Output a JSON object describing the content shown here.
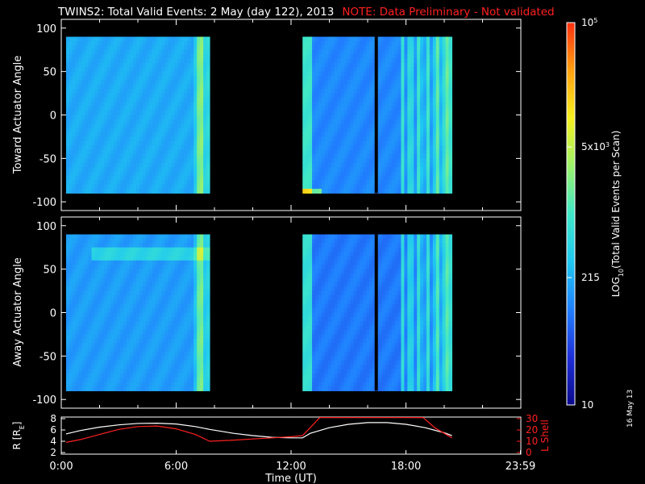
{
  "title": {
    "main": "TWINS2: Total Valid Events:  2 May (day 122), 2013",
    "note": "NOTE: Data Preliminary - Not validated"
  },
  "stamp": "16 May 13",
  "chart_data": [
    {
      "type": "heatmap",
      "panel": "toward",
      "ylabel": "Toward Actuator Angle",
      "ylim": [
        -110,
        110
      ],
      "yticks": [
        "100",
        "50",
        "0",
        "-50",
        "-100"
      ],
      "ytick_values": [
        100,
        50,
        0,
        -50,
        -100
      ],
      "xlim_hours": [
        0,
        24
      ],
      "y_extent": [
        -90,
        90
      ],
      "data_segments_hours": [
        [
          0.25,
          7.75
        ],
        [
          12.6,
          20.4
        ]
      ],
      "gap_line_hours": 16.45,
      "typical_log10": 2.3,
      "grid": false
    },
    {
      "type": "heatmap",
      "panel": "away",
      "ylabel": "Away Actuator Angle",
      "ylim": [
        -110,
        110
      ],
      "yticks": [
        "100",
        "50",
        "0",
        "-50",
        "-100"
      ],
      "ytick_values": [
        100,
        50,
        0,
        -50,
        -100
      ],
      "xlim_hours": [
        0,
        24
      ],
      "y_extent": [
        -90,
        90
      ],
      "data_segments_hours": [
        [
          0.25,
          7.75
        ],
        [
          12.6,
          20.4
        ]
      ],
      "gap_line_hours": 16.45,
      "typical_log10": 2.2,
      "grid": false
    },
    {
      "type": "line",
      "panel": "orbit",
      "ylabel_left": "R [R",
      "ylabel_left_sub": "E",
      "ylabel_left_end": "]",
      "ylabel_right": "L Shell",
      "ylim_left": [
        2,
        8
      ],
      "ylim_right": [
        0,
        30
      ],
      "yticks_left": [
        "8",
        "6",
        "4",
        "2"
      ],
      "ytick_values_left": [
        8,
        6,
        4,
        2
      ],
      "yticks_right": [
        "30",
        "20",
        "10",
        "0"
      ],
      "ytick_values_right": [
        30,
        20,
        10,
        0
      ],
      "xlabel": "Time (UT)",
      "xticks": [
        "0:00",
        "6:00",
        "12:00",
        "18:00",
        "23:59"
      ],
      "xtick_values_hours": [
        0,
        6,
        12,
        18,
        23.98
      ],
      "series": [
        {
          "axis": "left",
          "color": "#ffffff",
          "x": [
            0.25,
            1,
            2,
            3,
            4,
            5,
            6,
            7,
            7.75,
            9,
            10,
            11,
            12,
            12.6,
            13,
            14,
            15,
            16,
            17,
            18,
            19,
            20,
            20.4
          ],
          "y": [
            5.3,
            5.9,
            6.5,
            6.9,
            7.15,
            7.2,
            7.05,
            6.6,
            6.1,
            5.4,
            5.0,
            4.7,
            4.6,
            4.6,
            5.4,
            6.4,
            7.0,
            7.3,
            7.3,
            7.0,
            6.4,
            5.5,
            5.0
          ]
        },
        {
          "axis": "right",
          "color": "#ff2020",
          "x": [
            0.25,
            1,
            2,
            3,
            4,
            5,
            6,
            7,
            7.75,
            9,
            10,
            11,
            12,
            12.6,
            13,
            13.5,
            18.9,
            19.5,
            20,
            20.4
          ],
          "y": [
            9,
            11.5,
            16,
            20.5,
            23,
            23.5,
            21,
            16,
            10,
            11,
            12,
            13,
            14,
            15,
            22,
            31,
            31,
            22,
            17,
            13
          ]
        }
      ],
      "grid": false
    }
  ],
  "colorbar": {
    "label": "LOG",
    "label_sub": "10",
    "label_rest": "(Total Valid Events per Scan)",
    "scale": "log",
    "range": [
      10,
      100000
    ],
    "ticks": [
      {
        "value": 10,
        "label": "10",
        "sup": ""
      },
      {
        "value": 215,
        "label": "215",
        "sup": ""
      },
      {
        "value": 5000,
        "label": "5x10",
        "sup": "3"
      },
      {
        "value": 100000,
        "label": "10",
        "sup": "5"
      }
    ],
    "colors": [
      "#0a0a8c",
      "#1f2fd8",
      "#2080ff",
      "#1fc8f0",
      "#40e8c8",
      "#9cf26a",
      "#f6f020",
      "#ffa010",
      "#ff3010"
    ]
  }
}
